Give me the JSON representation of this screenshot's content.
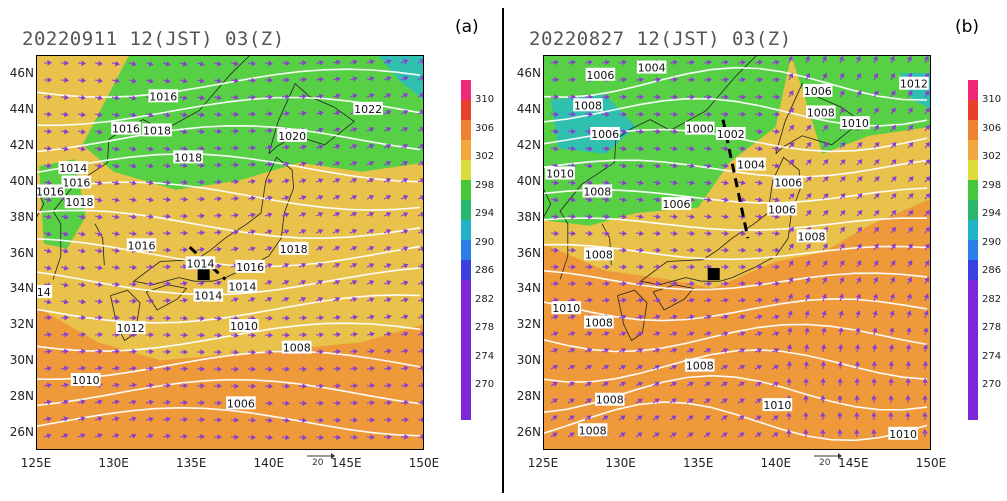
{
  "panels": [
    {
      "id": "a",
      "title": "20220911 12(JST) 03(Z)",
      "label": "(a)",
      "isobars": [
        {
          "text": "1016",
          "lon": 133.2,
          "lat": 44.7
        },
        {
          "text": "1016",
          "lon": 130.8,
          "lat": 42.9
        },
        {
          "text": "1018",
          "lon": 132.8,
          "lat": 42.8
        },
        {
          "text": "1018",
          "lon": 134.8,
          "lat": 41.3
        },
        {
          "text": "1020",
          "lon": 141.5,
          "lat": 42.5
        },
        {
          "text": "1022",
          "lon": 146.4,
          "lat": 44.0
        },
        {
          "text": "1014",
          "lon": 127.4,
          "lat": 40.7
        },
        {
          "text": "1016",
          "lon": 127.6,
          "lat": 39.9
        },
        {
          "text": "1016",
          "lon": 125.9,
          "lat": 39.4
        },
        {
          "text": "1018",
          "lon": 127.8,
          "lat": 38.8
        },
        {
          "text": "1016",
          "lon": 131.8,
          "lat": 36.4
        },
        {
          "text": "1018",
          "lon": 141.6,
          "lat": 36.2
        },
        {
          "text": "1014",
          "lon": 135.6,
          "lat": 35.4
        },
        {
          "text": "1016",
          "lon": 138.8,
          "lat": 35.2
        },
        {
          "text": "1014",
          "lon": 138.3,
          "lat": 34.1
        },
        {
          "text": "1014",
          "lon": 136.1,
          "lat": 33.6
        },
        {
          "text": "14",
          "lon": 125.5,
          "lat": 33.8
        },
        {
          "text": "1012",
          "lon": 131.1,
          "lat": 31.8
        },
        {
          "text": "1010",
          "lon": 138.4,
          "lat": 31.9
        },
        {
          "text": "1008",
          "lon": 141.8,
          "lat": 30.7
        },
        {
          "text": "1010",
          "lon": 128.2,
          "lat": 28.9
        },
        {
          "text": "1006",
          "lon": 138.2,
          "lat": 27.6
        }
      ],
      "front": [
        [
          134.9,
          36.3
        ],
        [
          137.2,
          34.5
        ]
      ],
      "marker": {
        "lon": 135.8,
        "lat": 34.8
      }
    },
    {
      "id": "b",
      "title": "20220827 12(JST) 03(Z)",
      "label": "(b)",
      "isobars": [
        {
          "text": "1006",
          "lon": 128.7,
          "lat": 45.9
        },
        {
          "text": "1004",
          "lon": 132.0,
          "lat": 46.3
        },
        {
          "text": "1008",
          "lon": 127.9,
          "lat": 44.2
        },
        {
          "text": "1006",
          "lon": 129.0,
          "lat": 42.6
        },
        {
          "text": "1000",
          "lon": 135.1,
          "lat": 42.9
        },
        {
          "text": "1002",
          "lon": 137.1,
          "lat": 42.6
        },
        {
          "text": "1004",
          "lon": 138.4,
          "lat": 40.9
        },
        {
          "text": "1006",
          "lon": 142.7,
          "lat": 45.0
        },
        {
          "text": "1008",
          "lon": 142.9,
          "lat": 43.8
        },
        {
          "text": "1010",
          "lon": 145.1,
          "lat": 43.2
        },
        {
          "text": "1012",
          "lon": 148.9,
          "lat": 45.4
        },
        {
          "text": "1010",
          "lon": 126.1,
          "lat": 40.4
        },
        {
          "text": "1008",
          "lon": 128.5,
          "lat": 39.4
        },
        {
          "text": "1006",
          "lon": 133.6,
          "lat": 38.7
        },
        {
          "text": "1006",
          "lon": 140.8,
          "lat": 39.9
        },
        {
          "text": "1006",
          "lon": 140.4,
          "lat": 38.4
        },
        {
          "text": "1008",
          "lon": 142.3,
          "lat": 36.9
        },
        {
          "text": "1008",
          "lon": 128.6,
          "lat": 35.9
        },
        {
          "text": "1010",
          "lon": 126.5,
          "lat": 32.9
        },
        {
          "text": "1008",
          "lon": 128.6,
          "lat": 32.1
        },
        {
          "text": "1008",
          "lon": 135.1,
          "lat": 29.7
        },
        {
          "text": "1008",
          "lon": 129.3,
          "lat": 27.8
        },
        {
          "text": "1008",
          "lon": 128.2,
          "lat": 26.1
        },
        {
          "text": "1010",
          "lon": 140.1,
          "lat": 27.5
        },
        {
          "text": "1010",
          "lon": 148.2,
          "lat": 25.9
        }
      ],
      "front": [
        [
          136.6,
          43.4
        ],
        [
          138.2,
          36.8
        ]
      ],
      "marker": {
        "lon": 136.0,
        "lat": 34.8
      }
    }
  ],
  "map": {
    "lon_range": [
      125,
      150
    ],
    "lat_range": [
      25,
      47
    ],
    "lon_ticks": [
      "125E",
      "130E",
      "135E",
      "140E",
      "145E",
      "150E"
    ],
    "lat_ticks": [
      "26N",
      "28N",
      "30N",
      "32N",
      "34N",
      "36N",
      "38N",
      "40N",
      "42N",
      "44N",
      "46N"
    ],
    "vector_scale_label": "20"
  },
  "colorbar": {
    "labels": [
      "310",
      "306",
      "302",
      "298",
      "294",
      "290",
      "286",
      "282",
      "278",
      "274",
      "270"
    ],
    "colors": [
      "#f0287a",
      "#e8402c",
      "#ee8230",
      "#f2a83c",
      "#dedb3c",
      "#45c93a",
      "#27b86d",
      "#22b3c8",
      "#2a7ee8",
      "#3c3fe0",
      "#7d28d8"
    ]
  },
  "colors": {
    "warm": "#ee9a3a",
    "yellow": "#e8c24a",
    "green": "#58d046",
    "cyan": "#2fc0b0",
    "vector": "#8a3fd0",
    "isobar": "#ffffff"
  }
}
